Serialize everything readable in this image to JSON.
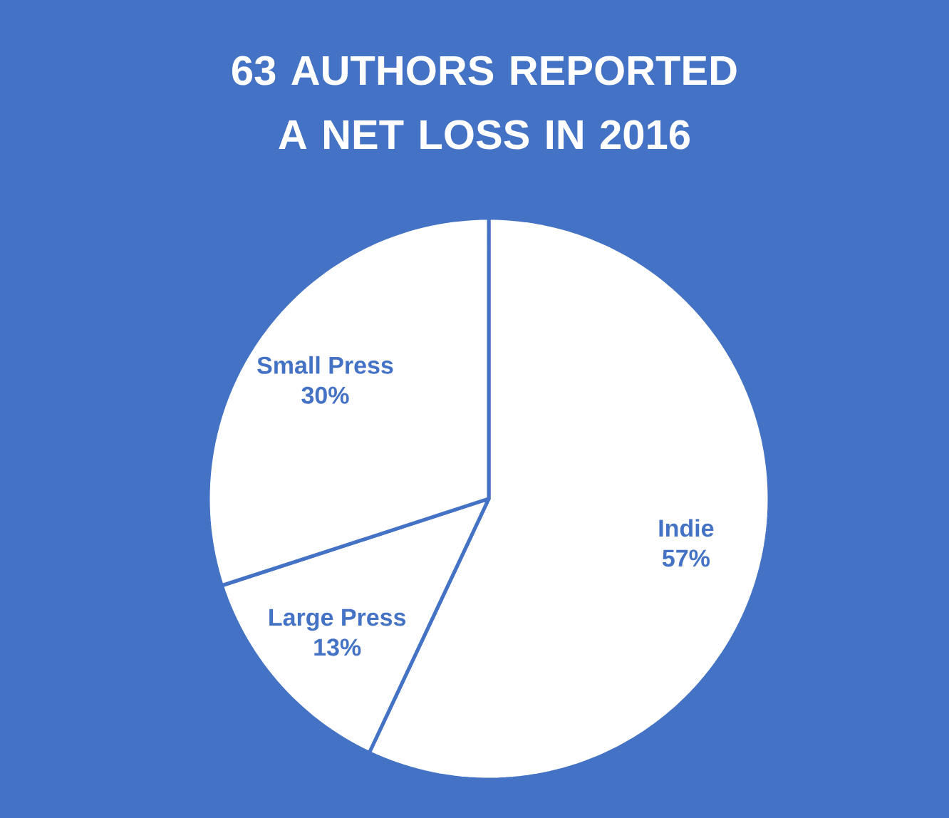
{
  "chart_data": {
    "type": "pie",
    "title": "63 AUTHORS REPORTED A NET LOSS IN 2016",
    "categories": [
      "Indie",
      "Large Press",
      "Small Press"
    ],
    "values": [
      57,
      13,
      30
    ],
    "value_labels": [
      "57%",
      "13%",
      "30%"
    ],
    "colors": [
      "#ffffff",
      "#ffffff",
      "#ffffff"
    ]
  }
}
